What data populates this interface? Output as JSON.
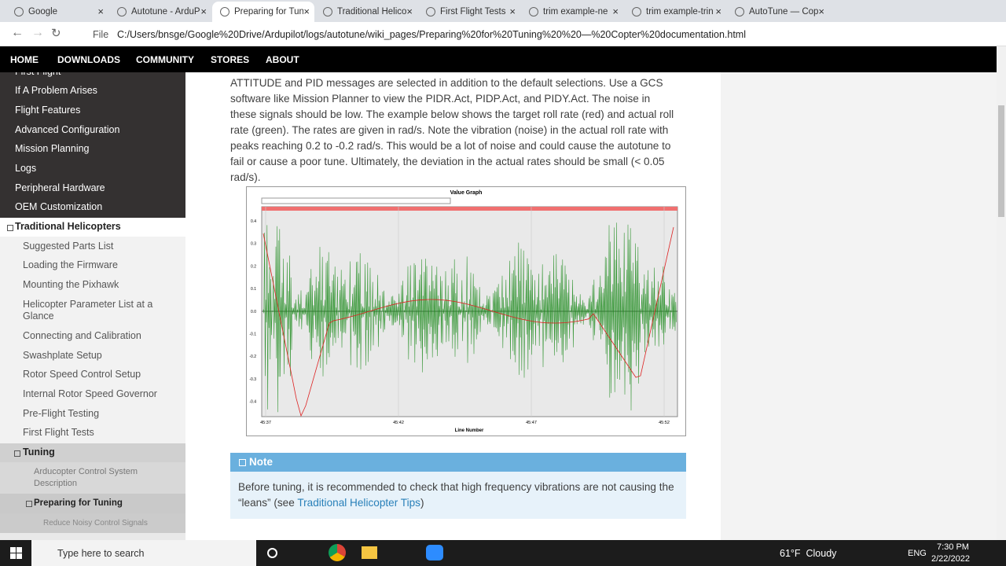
{
  "browser": {
    "tabs": [
      "Google",
      "Autotune - ArduP",
      "Preparing for Tun",
      "Traditional Helico",
      "First Flight Tests",
      "trim example-ne",
      "trim example-trin",
      "AutoTune — Cop"
    ],
    "active_tab": 2,
    "scheme": "File",
    "url": "C:/Users/bnsge/Google%20Drive/Ardupilot/logs/autotune/wiki_pages/Preparing%20for%20Tuning%20%20—%20Copter%20documentation.html"
  },
  "nav": [
    "HOME",
    "DOWNLOADS",
    "COMMUNITY",
    "STORES",
    "ABOUT"
  ],
  "sidebar": [
    {
      "label": "First Flight",
      "level": 0
    },
    {
      "label": "If A Problem Arises",
      "level": 0
    },
    {
      "label": "Flight Features",
      "level": 0
    },
    {
      "label": "Advanced Configuration",
      "level": 0
    },
    {
      "label": "Mission Planning",
      "level": 0
    },
    {
      "label": "Logs",
      "level": 0
    },
    {
      "label": "Peripheral Hardware",
      "level": 0
    },
    {
      "label": "OEM Customization",
      "level": 0
    },
    {
      "label": "Traditional Helicopters",
      "level": 0,
      "current": true
    },
    {
      "label": "Suggested Parts List",
      "level": 1
    },
    {
      "label": "Loading the Firmware",
      "level": 1
    },
    {
      "label": "Mounting the Pixhawk",
      "level": 1
    },
    {
      "label": "Helicopter Parameter List at a Glance",
      "level": 1
    },
    {
      "label": "Connecting and Calibration",
      "level": 1
    },
    {
      "label": "Swashplate Setup",
      "level": 1
    },
    {
      "label": "Rotor Speed Control Setup",
      "level": 1
    },
    {
      "label": "Internal Rotor Speed Governor",
      "level": 1
    },
    {
      "label": "Pre-Flight Testing",
      "level": 1
    },
    {
      "label": "First Flight Tests",
      "level": 1
    },
    {
      "label": "Tuning",
      "level": 1,
      "current": true
    },
    {
      "label": "Arducopter Control System Description",
      "level": 2
    },
    {
      "label": "Preparing for Tuning",
      "level": 2,
      "current": true
    },
    {
      "label": "Reduce Noisy Control Signals",
      "level": 3
    }
  ],
  "content": {
    "paragraph": "ATTITUDE and PID messages are selected in addition to the default selections. Use a GCS software like Mission Planner to view the PIDR.Act, PIDP.Act, and PIDY.Act. The noise in these signals should be low. The example below shows the target roll rate (red) and actual roll rate (green). The rates are given in rad/s. Note the vibration (noise) in the actual roll rate with peaks reaching 0.2 to -0.2 rad/s. This would be a lot of noise and could cause the autotune to fail or cause a poor tune. Ultimately, the deviation in the actual rates should be small (< 0.05 rad/s).",
    "figure": {
      "title": "Value Graph",
      "x_label": "Line Number",
      "x_ticks": [
        "45:37",
        "45:42",
        "45:47",
        "45:52"
      ],
      "y_ticks": [
        "0.4",
        "0.3",
        "0.2",
        "0.1",
        "0.0",
        "-0.1",
        "-0.2",
        "-0.3",
        "-0.4"
      ]
    },
    "note": {
      "title": "Note",
      "text_before": "Before tuning, it is recommended to check that high frequency vibrations are not causing the “leans” (see ",
      "link": "Traditional Helicopter Tips",
      "text_after": ")"
    }
  },
  "taskbar": {
    "search": "Type here to search",
    "weather": "61°F  Cloudy",
    "language": "ENG",
    "time": "7:30 PM",
    "date": "2/22/2022"
  }
}
